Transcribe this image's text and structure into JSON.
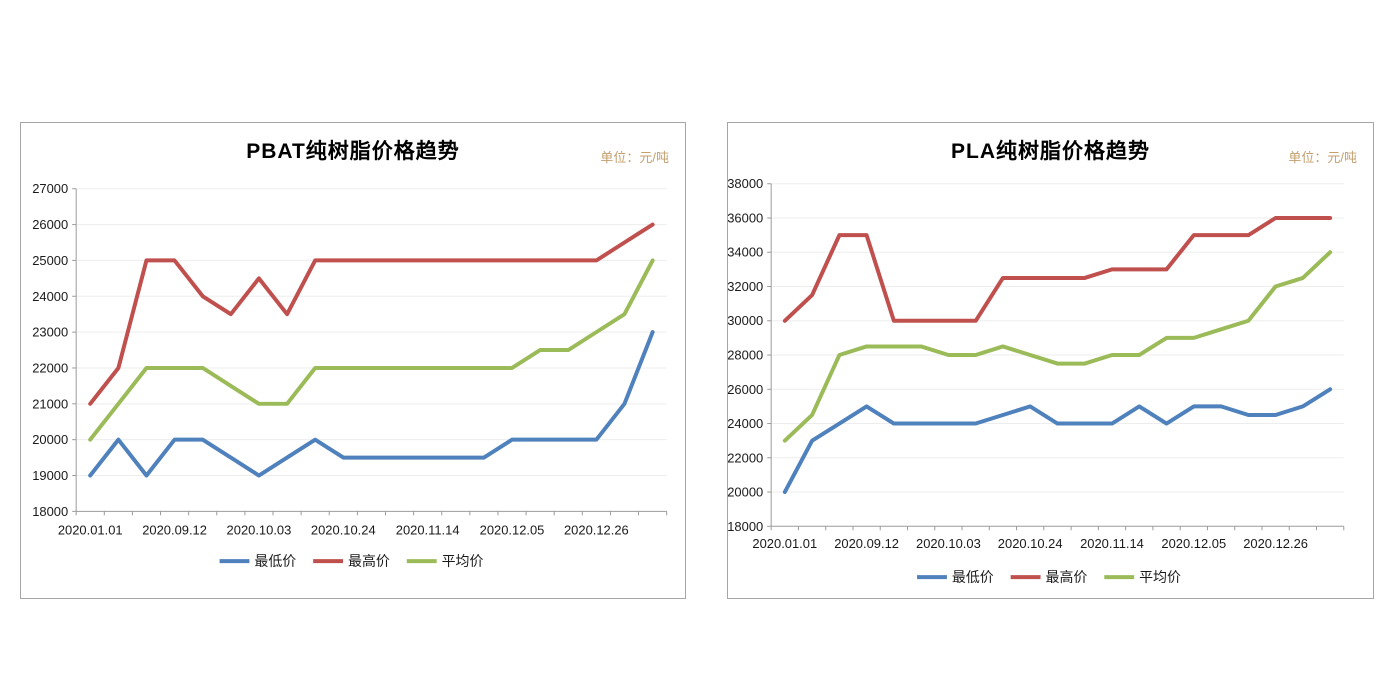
{
  "page": {
    "background": "#ffffff"
  },
  "colors": {
    "min_line": "#4f81bd",
    "max_line": "#c0504d",
    "avg_line": "#9bbb59",
    "unit_text": "#c3a06e",
    "axis": "#9b9b9b",
    "gridline": "#ededed",
    "label_text": "#1a1a1a",
    "panel_border": "#a6a6a6"
  },
  "chart_data": [
    {
      "type": "line",
      "title": "PBAT纯树脂价格趋势",
      "unit": "单位：元/吨",
      "grid": true,
      "legend_position": "bottom",
      "n_points": 21,
      "x_label_interval": 3,
      "x_tick_labels": [
        "2020.01.01",
        "2020.09.12",
        "2020.10.03",
        "2020.10.24",
        "2020.11.14",
        "2020.12.05",
        "2020.12.26"
      ],
      "ylim": [
        18000,
        27000
      ],
      "y_tick_step": 1000,
      "y_tick_labels": [
        "27000",
        "26000",
        "25000",
        "24000",
        "23000",
        "22000",
        "21000",
        "20000",
        "19000",
        "18000"
      ],
      "series": [
        {
          "key": "min",
          "name": "最低价",
          "color": "#4f81bd",
          "values": [
            19000,
            20000,
            19000,
            20000,
            20000,
            19500,
            19000,
            19500,
            20000,
            19500,
            19500,
            19500,
            19500,
            19500,
            19500,
            20000,
            20000,
            20000,
            20000,
            21000,
            23000
          ]
        },
        {
          "key": "max",
          "name": "最高价",
          "color": "#c0504d",
          "values": [
            21000,
            22000,
            25000,
            25000,
            24000,
            23500,
            24500,
            23500,
            25000,
            25000,
            25000,
            25000,
            25000,
            25000,
            25000,
            25000,
            25000,
            25000,
            25000,
            25500,
            26000
          ]
        },
        {
          "key": "avg",
          "name": "平均价",
          "color": "#9bbb59",
          "values": [
            20000,
            21000,
            22000,
            22000,
            22000,
            21500,
            21000,
            21000,
            22000,
            22000,
            22000,
            22000,
            22000,
            22000,
            22000,
            22000,
            22500,
            22500,
            23000,
            23500,
            25000
          ]
        }
      ]
    },
    {
      "type": "line",
      "title": "PLA纯树脂价格趋势",
      "unit": "单位：元/吨",
      "grid": true,
      "legend_position": "bottom",
      "n_points": 21,
      "x_label_interval": 3,
      "x_tick_labels": [
        "2020.01.01",
        "2020.09.12",
        "2020.10.03",
        "2020.10.24",
        "2020.11.14",
        "2020.12.05",
        "2020.12.26"
      ],
      "ylim": [
        18000,
        38000
      ],
      "y_tick_step": 2000,
      "y_tick_labels": [
        "38000",
        "36000",
        "34000",
        "32000",
        "30000",
        "28000",
        "26000",
        "24000",
        "22000",
        "20000",
        "18000"
      ],
      "series": [
        {
          "key": "min",
          "name": "最低价",
          "color": "#4f81bd",
          "values": [
            20000,
            23000,
            24000,
            25000,
            24000,
            24000,
            24000,
            24000,
            24500,
            25000,
            24000,
            24000,
            24000,
            25000,
            24000,
            25000,
            25000,
            24500,
            24500,
            25000,
            26000
          ]
        },
        {
          "key": "max",
          "name": "最高价",
          "color": "#c0504d",
          "values": [
            30000,
            31500,
            35000,
            35000,
            30000,
            30000,
            30000,
            30000,
            32500,
            32500,
            32500,
            32500,
            33000,
            33000,
            33000,
            35000,
            35000,
            35000,
            36000,
            36000,
            36000
          ]
        },
        {
          "key": "avg",
          "name": "平均价",
          "color": "#9bbb59",
          "values": [
            23000,
            24500,
            28000,
            28500,
            28500,
            28500,
            28000,
            28000,
            28500,
            28000,
            27500,
            27500,
            28000,
            28000,
            29000,
            29000,
            29500,
            30000,
            32000,
            32500,
            34000
          ]
        }
      ]
    }
  ]
}
